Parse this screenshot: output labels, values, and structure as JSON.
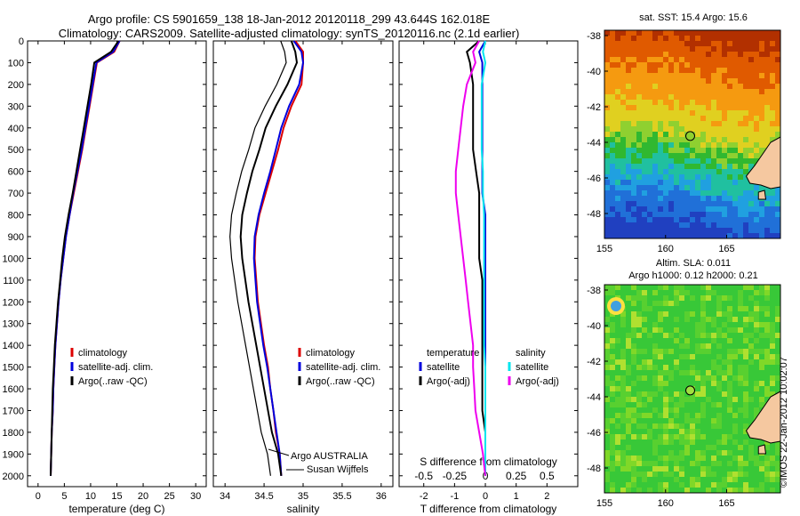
{
  "header": {
    "line1": "Argo profile: CS 5901659_138 18-Jan-2012 20120118_299 43.644S 162.018E",
    "line2": "Climatology: CARS2009. Satellite-adjusted climatology: synTS_20120116.nc (2.1d earlier)"
  },
  "maps": {
    "sst_title": "sat. SST: 15.4  Argo: 15.6",
    "sla_title1": "Altim. SLA: 0.011",
    "sla_title2": "Argo h1000: 0.12 h2000: 0.21",
    "lat_ticks": [
      "-38",
      "-40",
      "-42",
      "-44",
      "-46",
      "-48"
    ],
    "lon_ticks": [
      "155",
      "160",
      "165"
    ],
    "lat_range": [
      -49.4,
      -37.7
    ],
    "lon_range": [
      155,
      169.4
    ],
    "argo_position": {
      "lon": 162.018,
      "lat": -43.644
    }
  },
  "stamp": "©IMOS 22-Jan-2012 10:02:07",
  "annotation": {
    "line1": "Argo AUSTRALIA",
    "line2": "Susan Wijffels"
  },
  "chart_data": [
    {
      "type": "line",
      "xlabel": "temperature (deg C)",
      "ylabel": "",
      "xlim": [
        -2,
        32
      ],
      "ylim": [
        2050,
        0
      ],
      "xticks": [
        0,
        5,
        10,
        15,
        20,
        25,
        30
      ],
      "yticks": [
        0,
        100,
        200,
        300,
        400,
        500,
        600,
        700,
        800,
        900,
        1000,
        1100,
        1200,
        1300,
        1400,
        1500,
        1600,
        1700,
        1800,
        1900,
        2000
      ],
      "legend": [
        "climatology",
        "satellite-adj. clim.",
        "Argo(..raw -QC)"
      ],
      "legend_position": "lower-right",
      "depth": [
        0,
        50,
        100,
        200,
        300,
        400,
        500,
        600,
        700,
        800,
        900,
        1000,
        1100,
        1200,
        1300,
        1400,
        1500,
        1600,
        1700,
        1800,
        1900,
        2000
      ],
      "series": [
        {
          "name": "climatology",
          "color": "#dd0000",
          "values": [
            15.5,
            14.5,
            11.2,
            10.5,
            9.8,
            9.1,
            8.4,
            7.6,
            6.8,
            6.0,
            5.3,
            4.8,
            4.3,
            3.9,
            3.6,
            3.3,
            3.1,
            2.9,
            2.8,
            2.6,
            2.5,
            2.4
          ]
        },
        {
          "name": "satellite-adj. clim.",
          "color": "#0000dd",
          "values": [
            15.5,
            14.3,
            11.1,
            10.4,
            9.7,
            9.0,
            8.3,
            7.5,
            6.7,
            6.0,
            5.3,
            4.8,
            4.3,
            3.9,
            3.6,
            3.3,
            3.1,
            2.9,
            2.8,
            2.6,
            2.5,
            2.4
          ]
        },
        {
          "name": "Argo(..raw -QC)",
          "color": "#000000",
          "values": [
            15.3,
            13.9,
            10.7,
            10.1,
            9.4,
            8.7,
            8.0,
            7.3,
            6.6,
            5.8,
            5.1,
            4.6,
            4.2,
            3.8,
            3.5,
            3.2,
            3.0,
            2.8,
            2.7,
            2.6,
            2.5,
            2.4
          ]
        }
      ]
    },
    {
      "type": "line",
      "xlabel": "salinity",
      "ylabel": "",
      "xlim": [
        33.85,
        36.15
      ],
      "ylim": [
        2050,
        0
      ],
      "xticks": [
        34,
        34.5,
        35,
        35.5,
        36
      ],
      "legend": [
        "climatology",
        "satellite-adj. clim.",
        "Argo(..raw -QC)"
      ],
      "legend_position": "lower-right",
      "depth": [
        0,
        50,
        100,
        200,
        300,
        400,
        500,
        600,
        700,
        800,
        900,
        1000,
        1100,
        1200,
        1300,
        1400,
        1500,
        1600,
        1700,
        1800,
        1900,
        2000
      ],
      "series": [
        {
          "name": "climatology",
          "color": "#dd0000",
          "values": [
            34.9,
            35.0,
            35.0,
            34.98,
            34.85,
            34.75,
            34.68,
            34.6,
            34.52,
            34.44,
            34.39,
            34.38,
            34.4,
            34.42,
            34.46,
            34.5,
            34.55,
            34.58,
            34.62,
            34.65,
            34.7,
            34.72
          ]
        },
        {
          "name": "satellite-adj. clim.",
          "color": "#0000dd",
          "values": [
            34.88,
            34.98,
            35.0,
            34.95,
            34.82,
            34.72,
            34.65,
            34.58,
            34.5,
            34.43,
            34.38,
            34.37,
            34.39,
            34.41,
            34.45,
            34.49,
            34.54,
            34.58,
            34.62,
            34.66,
            34.7,
            34.72
          ]
        },
        {
          "name": "Argo(..raw -QC)",
          "color": "#000000",
          "values": [
            34.85,
            34.9,
            34.92,
            34.8,
            34.65,
            34.52,
            34.44,
            34.35,
            34.28,
            34.22,
            34.2,
            34.22,
            34.26,
            34.3,
            34.35,
            34.4,
            34.45,
            34.5,
            34.55,
            34.6,
            34.68,
            34.72
          ]
        }
      ]
    },
    {
      "type": "line",
      "xlabel": "T difference from climatology",
      "x2label": "S difference from climatology",
      "ylabel": "",
      "xlim": [
        -2.8,
        3.0
      ],
      "x2lim": [
        -0.7,
        0.75
      ],
      "ylim": [
        2050,
        0
      ],
      "xticks": [
        -2,
        -1,
        0,
        1,
        2
      ],
      "x2ticks": [
        -0.5,
        -0.25,
        0,
        0.25,
        0.5
      ],
      "x2ticklabels": [
        "-0.5",
        "-0.25",
        "0",
        "0.25",
        "0.5"
      ],
      "legend": [
        "temperature",
        "satellite",
        "Argo(-adj)",
        "salinity",
        "satellite",
        "Argo(-adj)"
      ],
      "legend_position": "lower-right",
      "depth": [
        0,
        50,
        100,
        200,
        300,
        400,
        500,
        600,
        700,
        800,
        900,
        1000,
        1100,
        1200,
        1300,
        1400,
        1500,
        1600,
        1700,
        1800,
        1900,
        2000
      ],
      "series": [
        {
          "name": "satellite",
          "group": "temperature",
          "color": "#0000dd",
          "values": [
            0.0,
            -0.2,
            -0.1,
            -0.1,
            -0.1,
            -0.1,
            -0.1,
            -0.1,
            -0.1,
            0.0,
            0.0,
            0.0,
            0.0,
            0.0,
            0.0,
            0.0,
            0.0,
            0.0,
            0.0,
            0.0,
            0.0,
            0.0
          ]
        },
        {
          "name": "Argo(-adj)",
          "group": "temperature",
          "color": "#000000",
          "values": [
            -0.2,
            -0.6,
            -0.5,
            -0.4,
            -0.4,
            -0.4,
            -0.4,
            -0.3,
            -0.2,
            -0.2,
            -0.2,
            -0.2,
            -0.1,
            -0.1,
            -0.1,
            -0.1,
            -0.1,
            -0.1,
            -0.1,
            0.0,
            0.0,
            0.0
          ]
        },
        {
          "name": "satellite",
          "group": "salinity",
          "color": "#00e5ee",
          "values": [
            0.0,
            -0.02,
            0.0,
            -0.03,
            -0.03,
            -0.03,
            -0.03,
            -0.02,
            -0.02,
            -0.01,
            -0.01,
            -0.01,
            -0.01,
            -0.01,
            -0.01,
            -0.01,
            0.0,
            0.0,
            0.0,
            0.0,
            0.0,
            0.0
          ]
        },
        {
          "name": "Argo(-adj)",
          "group": "salinity",
          "color": "#ee00ee",
          "values": [
            -0.05,
            -0.1,
            -0.08,
            -0.15,
            -0.18,
            -0.2,
            -0.22,
            -0.24,
            -0.24,
            -0.22,
            -0.2,
            -0.18,
            -0.16,
            -0.14,
            -0.12,
            -0.1,
            -0.1,
            -0.09,
            -0.08,
            -0.05,
            -0.02,
            0.0
          ]
        }
      ]
    }
  ]
}
